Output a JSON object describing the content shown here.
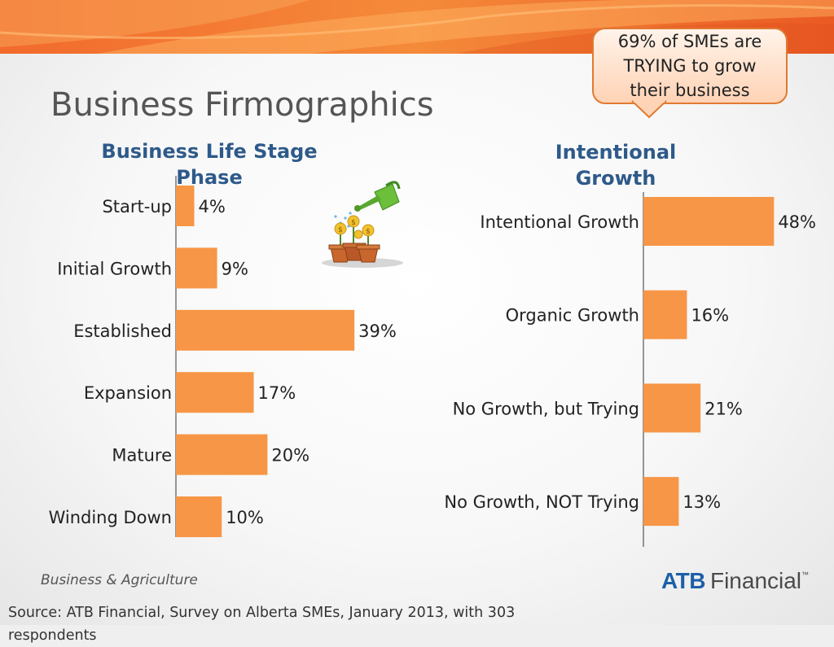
{
  "slide": {
    "title": "Business Firmographics",
    "callout": "69% of SMEs are TRYING to grow their business",
    "footer_label": "Business & Agriculture",
    "brand": {
      "primary": "ATB",
      "secondary": "Financial",
      "mark": "™"
    },
    "source": "Source: ATB Financial, Survey on Alberta SMEs, January 2013, with 303 respondents"
  },
  "colors": {
    "bar": "#f79646",
    "axis": "#333333",
    "chart_title": "#2e5a8a",
    "accent": "#f0612a",
    "brand_blue": "#1d5fa8"
  },
  "illustration": {
    "name": "watering-can-money-plants"
  },
  "chart_data": [
    {
      "type": "bar",
      "orientation": "horizontal",
      "title": "Business Life Stage Phase",
      "categories": [
        "Start-up",
        "Initial Growth",
        "Established",
        "Expansion",
        "Mature",
        "Winding Down"
      ],
      "values": [
        4,
        9,
        39,
        17,
        20,
        10
      ],
      "data_labels": [
        "4%",
        "9%",
        "39%",
        "17%",
        "20%",
        "10%"
      ],
      "xlim": [
        0,
        100
      ],
      "grid": false,
      "legend": "none"
    },
    {
      "type": "bar",
      "orientation": "horizontal",
      "title": "Intentional Growth",
      "categories": [
        "Intentional Growth",
        "Organic Growth",
        "No Growth, but Trying",
        "No Growth, NOT Trying"
      ],
      "values": [
        48,
        16,
        21,
        13
      ],
      "data_labels": [
        "48%",
        "16%",
        "21%",
        "13%"
      ],
      "xlim": [
        0,
        100
      ],
      "grid": false,
      "legend": "none"
    }
  ]
}
